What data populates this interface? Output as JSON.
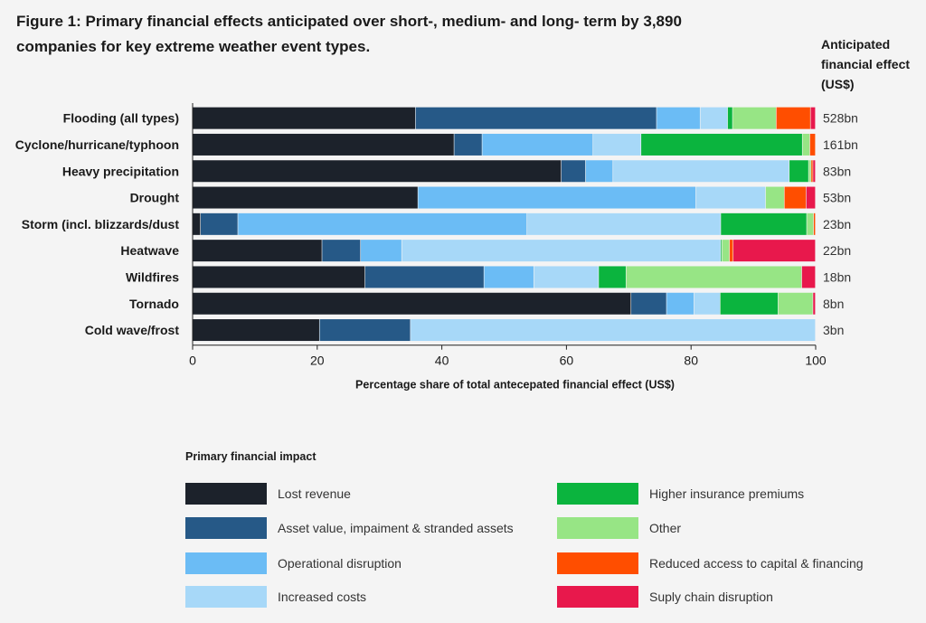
{
  "title": "Figure 1: Primary financial effects anticipated over short-, medium- and long- term by 3,890 companies for key extreme weather event types.",
  "effect_header": "Anticipated financial effect (US$)",
  "legend_title": "Primary financial impact",
  "colors": {
    "Lost revenue": "#1c222b",
    "Asset value, impaiment & stranded assets": "#265987",
    "Operational disruption": "#6bbcf5",
    "Increased costs": "#a7d8f8",
    "Higher insurance premiums": "#0bb43e",
    "Other": "#97e585",
    "Reduced access to capital & financing": "#ff4e00",
    "Suply chain disruption": "#e8184c"
  },
  "chart_data": {
    "type": "bar",
    "orientation": "horizontal",
    "stacked": true,
    "xlabel": "Percentage share of total antecepated financial effect (US$)",
    "xlim": [
      0,
      100
    ],
    "xticks": [
      "0",
      "20",
      "40",
      "60",
      "80",
      "100"
    ],
    "categories": [
      "Flooding (all types)",
      "Cyclone/hurricane/typhoon",
      "Heavy precipitation",
      "Drought",
      "Storm (incl. blizzards/dust",
      "Heatwave",
      "Wildfires",
      "Tornado",
      "Cold wave/frost"
    ],
    "effects": [
      "528bn",
      "161bn",
      "83bn",
      "53bn",
      "23bn",
      "22bn",
      "18bn",
      "8bn",
      "3bn"
    ],
    "legend_position": "bottom",
    "series": [
      {
        "name": "Lost revenue",
        "values": [
          35.8,
          42.0,
          59.2,
          36.2,
          1.3,
          20.8,
          27.7,
          70.4,
          20.4
        ]
      },
      {
        "name": "Asset value, impaiment & stranded assets",
        "values": [
          38.7,
          4.5,
          3.9,
          0,
          6.0,
          6.2,
          19.1,
          5.7,
          14.6
        ]
      },
      {
        "name": "Operational disruption",
        "values": [
          7.0,
          17.8,
          4.4,
          44.6,
          46.4,
          6.6,
          8.0,
          4.4,
          0
        ]
      },
      {
        "name": "Increased costs",
        "values": [
          4.4,
          7.7,
          28.3,
          11.2,
          31.1,
          51.2,
          10.4,
          4.2,
          65.0
        ]
      },
      {
        "name": "Higher insurance premiums",
        "values": [
          0.8,
          25.9,
          3.1,
          0,
          13.8,
          0.2,
          4.4,
          9.3,
          0
        ]
      },
      {
        "name": "Other",
        "values": [
          7.0,
          1.2,
          0.4,
          3.0,
          1.1,
          1.2,
          28.2,
          5.6,
          0
        ]
      },
      {
        "name": "Reduced access to capital & financing",
        "values": [
          5.5,
          0.9,
          0.3,
          3.5,
          0.3,
          0.6,
          0,
          0,
          0
        ]
      },
      {
        "name": "Suply chain disruption",
        "values": [
          0.8,
          0,
          0.4,
          1.5,
          0,
          13.2,
          2.2,
          0.4,
          0
        ]
      }
    ]
  }
}
